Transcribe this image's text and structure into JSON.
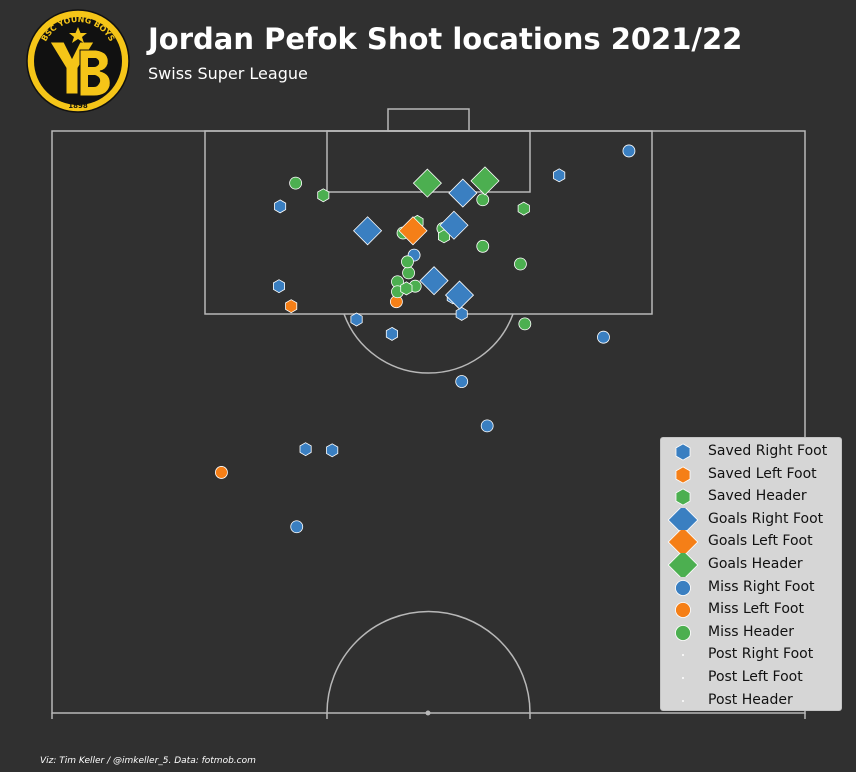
{
  "header": {
    "title": "Jordan Pefok Shot locations 2021/22",
    "subtitle": "Swiss Super League"
  },
  "logo": {
    "text": "BSC YOUNG BOYS",
    "year": "1898",
    "letters": "YB",
    "colors": {
      "gold": "#f5c518",
      "black": "#111111"
    }
  },
  "footer": {
    "credit": "Viz: Tim Keller / @imkeller_5. Data: fotmob.com"
  },
  "chart_data": {
    "type": "scatter",
    "pitch": {
      "orientation": "vertical-half",
      "length": 105,
      "width": 68,
      "line_color": "#b8b8b8",
      "background": "#303030"
    },
    "encoding": {
      "color_by_body_part": {
        "Right Foot": "#3a7fc1",
        "Left Foot": "#f57f17",
        "Header": "#4caf50"
      },
      "marker_by_outcome": {
        "Saved": "hexagon",
        "Goals": "diamond",
        "Miss": "circle",
        "Post": "dot"
      }
    },
    "legend": {
      "position": "lower-right",
      "entries": [
        {
          "label": "Saved Right Foot",
          "marker": "hexagon",
          "color": "#3a7fc1"
        },
        {
          "label": "Saved Left Foot",
          "marker": "hexagon",
          "color": "#f57f17"
        },
        {
          "label": "Saved Header",
          "marker": "hexagon",
          "color": "#4caf50"
        },
        {
          "label": "Goals Right Foot",
          "marker": "diamond",
          "color": "#3a7fc1"
        },
        {
          "label": "Goals Left Foot",
          "marker": "diamond",
          "color": "#f57f17"
        },
        {
          "label": "Goals Header",
          "marker": "diamond",
          "color": "#4caf50"
        },
        {
          "label": "Miss Right Foot",
          "marker": "circle",
          "color": "#3a7fc1"
        },
        {
          "label": "Miss Left Foot",
          "marker": "circle",
          "color": "#f57f17"
        },
        {
          "label": "Miss Header",
          "marker": "circle",
          "color": "#4caf50"
        },
        {
          "label": "Post Right Foot",
          "marker": "dot",
          "color": "#ffffff"
        },
        {
          "label": "Post Left Foot",
          "marker": "dot",
          "color": "#ffffff"
        },
        {
          "label": "Post Header",
          "marker": "dot",
          "color": "#ffffff"
        }
      ]
    },
    "series": [
      {
        "name": "Saved Right Foot",
        "points": [
          {
            "x": 20.6,
            "y": 6.8
          },
          {
            "x": 45.8,
            "y": 4.0
          },
          {
            "x": 20.5,
            "y": 14.0
          },
          {
            "x": 27.5,
            "y": 17.0
          },
          {
            "x": 37.0,
            "y": 16.5
          },
          {
            "x": 36.2,
            "y": 15.0
          },
          {
            "x": 30.7,
            "y": 18.3
          },
          {
            "x": 25.3,
            "y": 28.8
          },
          {
            "x": 22.9,
            "y": 28.7
          }
        ]
      },
      {
        "name": "Saved Left Foot",
        "points": [
          {
            "x": 21.6,
            "y": 15.8
          }
        ]
      },
      {
        "name": "Saved Header",
        "points": [
          {
            "x": 24.5,
            "y": 5.8
          },
          {
            "x": 42.6,
            "y": 7.0
          },
          {
            "x": 35.4,
            "y": 9.5
          },
          {
            "x": 33.0,
            "y": 8.2
          },
          {
            "x": 32.0,
            "y": 14.2
          }
        ]
      },
      {
        "name": "Goals Right Foot",
        "points": [
          {
            "x": 37.1,
            "y": 5.6
          },
          {
            "x": 28.5,
            "y": 9.0
          },
          {
            "x": 36.3,
            "y": 8.5
          },
          {
            "x": 34.5,
            "y": 13.5
          },
          {
            "x": 36.8,
            "y": 14.8
          }
        ]
      },
      {
        "name": "Goals Left Foot",
        "points": [
          {
            "x": 32.6,
            "y": 9.0
          }
        ]
      },
      {
        "name": "Goals Header",
        "points": [
          {
            "x": 33.9,
            "y": 4.7
          },
          {
            "x": 39.1,
            "y": 4.5
          }
        ]
      },
      {
        "name": "Miss Right Foot",
        "points": [
          {
            "x": 52.1,
            "y": 1.8
          },
          {
            "x": 32.7,
            "y": 11.2
          },
          {
            "x": 49.8,
            "y": 18.6
          },
          {
            "x": 37.0,
            "y": 22.6
          },
          {
            "x": 39.3,
            "y": 26.6
          },
          {
            "x": 22.1,
            "y": 35.7
          }
        ]
      },
      {
        "name": "Miss Left Foot",
        "points": [
          {
            "x": 31.1,
            "y": 15.4
          },
          {
            "x": 15.3,
            "y": 30.8
          }
        ]
      },
      {
        "name": "Miss Header",
        "points": [
          {
            "x": 22.0,
            "y": 4.7
          },
          {
            "x": 31.7,
            "y": 9.2
          },
          {
            "x": 35.3,
            "y": 8.8
          },
          {
            "x": 38.9,
            "y": 6.2
          },
          {
            "x": 38.9,
            "y": 10.4
          },
          {
            "x": 42.3,
            "y": 12.0
          },
          {
            "x": 32.2,
            "y": 12.8
          },
          {
            "x": 32.1,
            "y": 11.8
          },
          {
            "x": 31.2,
            "y": 13.6
          },
          {
            "x": 31.2,
            "y": 14.5
          },
          {
            "x": 32.8,
            "y": 14.0
          },
          {
            "x": 42.7,
            "y": 17.4
          }
        ]
      },
      {
        "name": "Post Right Foot",
        "points": []
      },
      {
        "name": "Post Left Foot",
        "points": []
      },
      {
        "name": "Post Header",
        "points": []
      }
    ]
  }
}
